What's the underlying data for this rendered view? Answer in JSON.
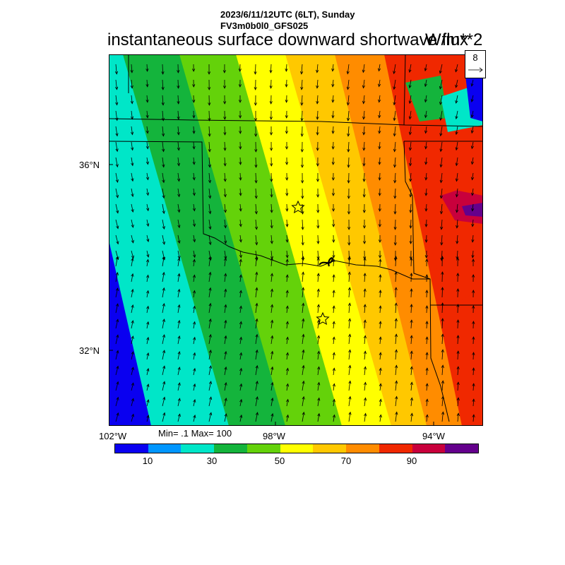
{
  "header": {
    "datetime": "2023/6/11/12UTC (6LT), Sunday",
    "model": "FV3m0b0l0_GFS025",
    "title": "instantaneous surface downward shortwave flux",
    "units": "W/m**2"
  },
  "reference_vector": {
    "value": "8"
  },
  "axes": {
    "lat_labels": [
      "36°N",
      "32°N"
    ],
    "lon_labels": [
      "102°W",
      "98°W",
      "94°W"
    ]
  },
  "stats": "Min= .1 Max= 100",
  "colorbar": {
    "colors": [
      "#0a00f0",
      "#0096ff",
      "#00e6c8",
      "#14b43c",
      "#64d20a",
      "#ffff00",
      "#ffc800",
      "#ff8c00",
      "#f02800",
      "#c8003c",
      "#64008c"
    ],
    "labels": [
      "10",
      "30",
      "50",
      "70",
      "90"
    ]
  },
  "markers": [
    "star-marker-north",
    "star-marker-south"
  ]
}
